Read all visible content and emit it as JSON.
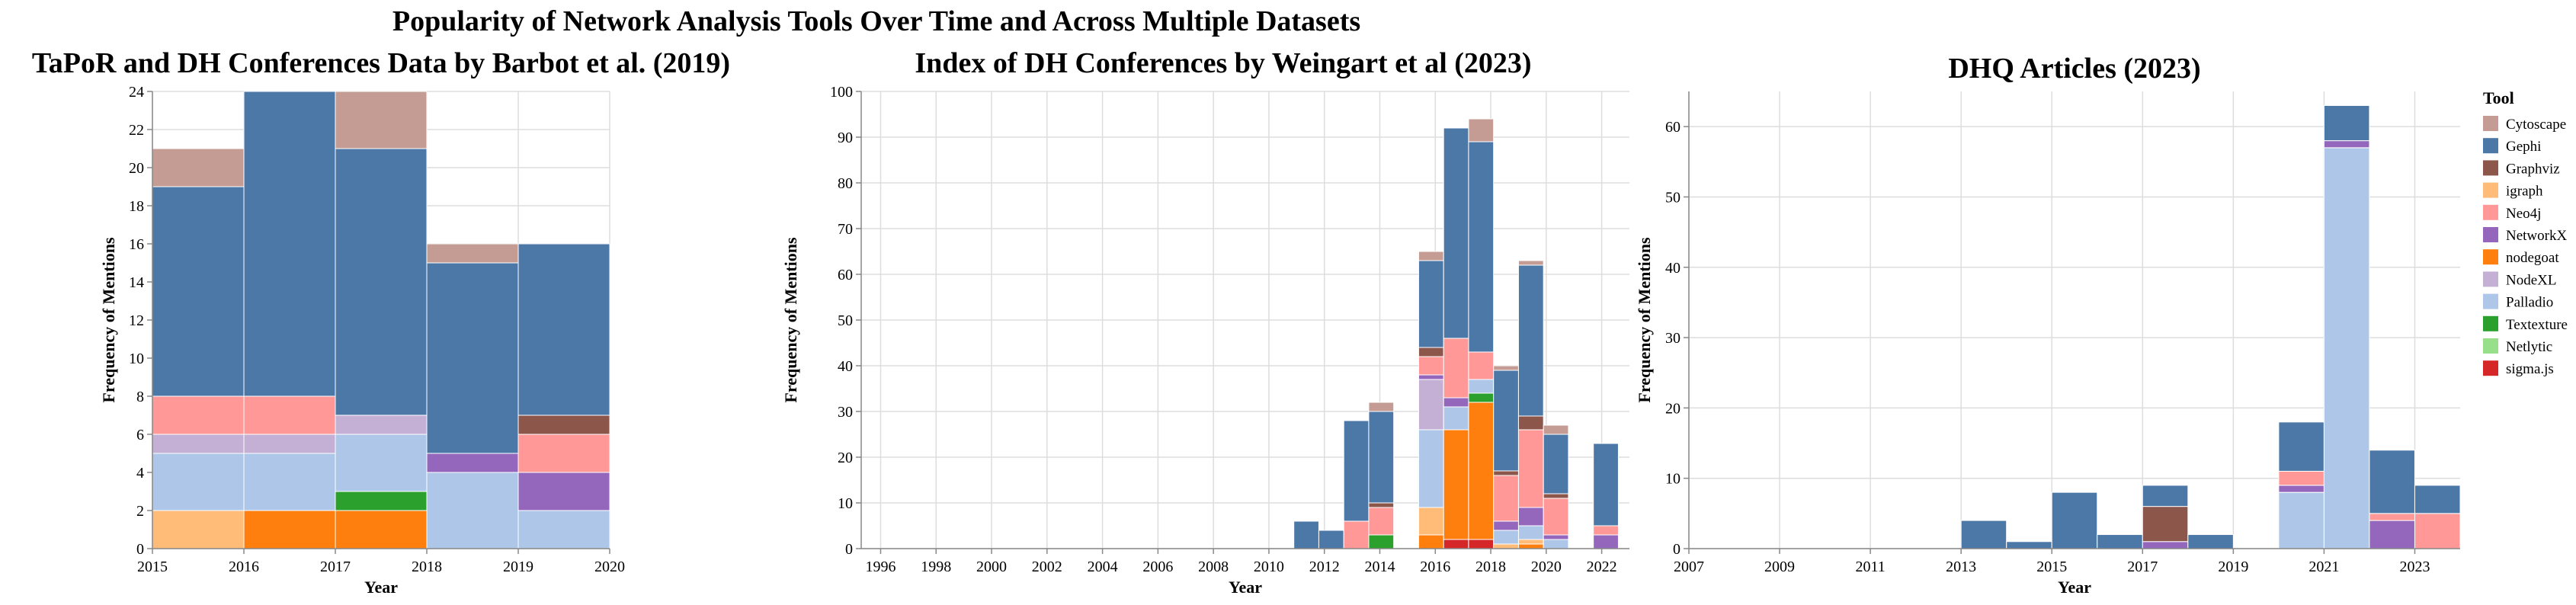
{
  "title": "Popularity of Network Analysis Tools Over Time and Across Multiple Datasets",
  "legend": {
    "title": "Tool",
    "items": [
      {
        "name": "Cytoscape",
        "color": "#c49c94"
      },
      {
        "name": "Gephi",
        "color": "#4c78a8"
      },
      {
        "name": "Graphviz",
        "color": "#8c564b"
      },
      {
        "name": "igraph",
        "color": "#ffbb78"
      },
      {
        "name": "Neo4j",
        "color": "#ff9896"
      },
      {
        "name": "NetworkX",
        "color": "#9467bd"
      },
      {
        "name": "nodegoat",
        "color": "#ff7f0e"
      },
      {
        "name": "NodeXL",
        "color": "#c5b0d5"
      },
      {
        "name": "Palladio",
        "color": "#aec7e8"
      },
      {
        "name": "Textexture",
        "color": "#2ca02c"
      },
      {
        "name": "Netlytic",
        "color": "#98df8a"
      },
      {
        "name": "sigma.js",
        "color": "#d62728"
      }
    ]
  },
  "chart_data": [
    {
      "type": "bar",
      "stacked": true,
      "title": "TaPoR and DH Conferences Data by Barbot et al. (2019)",
      "xlabel": "Year",
      "ylabel": "Frequency of Mentions",
      "xlim": [
        2015,
        2020
      ],
      "ylim": [
        0,
        24
      ],
      "xticks": [
        2015,
        2016,
        2017,
        2018,
        2019,
        2020
      ],
      "yticks": [
        0,
        2,
        4,
        6,
        8,
        10,
        12,
        14,
        16,
        18,
        20,
        22,
        24
      ],
      "grid": true,
      "bins": [
        {
          "x0": 2015,
          "x1": 2016,
          "stack": [
            [
              "igraph",
              2
            ],
            [
              "Palladio",
              3
            ],
            [
              "NodeXL",
              1
            ],
            [
              "Neo4j",
              2
            ],
            [
              "Gephi",
              11
            ],
            [
              "Cytoscape",
              2
            ]
          ]
        },
        {
          "x0": 2016,
          "x1": 2017,
          "stack": [
            [
              "nodegoat",
              2
            ],
            [
              "Palladio",
              3
            ],
            [
              "NodeXL",
              1
            ],
            [
              "Neo4j",
              2
            ],
            [
              "Gephi",
              16
            ]
          ]
        },
        {
          "x0": 2017,
          "x1": 2018,
          "stack": [
            [
              "nodegoat",
              2
            ],
            [
              "Textexture",
              1
            ],
            [
              "Palladio",
              3
            ],
            [
              "NodeXL",
              1
            ],
            [
              "Gephi",
              14
            ],
            [
              "Cytoscape",
              3
            ]
          ]
        },
        {
          "x0": 2018,
          "x1": 2019,
          "stack": [
            [
              "Palladio",
              4
            ],
            [
              "NetworkX",
              1
            ],
            [
              "Gephi",
              10
            ],
            [
              "Cytoscape",
              1
            ]
          ]
        },
        {
          "x0": 2019,
          "x1": 2020,
          "stack": [
            [
              "Palladio",
              2
            ],
            [
              "NetworkX",
              2
            ],
            [
              "Neo4j",
              2
            ],
            [
              "Graphviz",
              1
            ],
            [
              "Gephi",
              9
            ]
          ]
        }
      ]
    },
    {
      "type": "bar",
      "stacked": true,
      "title": "Index of DH Conferences by Weingart et al (2023)",
      "xlabel": "Year",
      "ylabel": "Frequency of Mentions",
      "xlim": [
        1995.3,
        2023
      ],
      "ylim": [
        0,
        100
      ],
      "xticks": [
        1996,
        1998,
        2000,
        2002,
        2004,
        2006,
        2008,
        2010,
        2012,
        2014,
        2016,
        2018,
        2020,
        2022
      ],
      "yticks": [
        0,
        10,
        20,
        30,
        40,
        50,
        60,
        70,
        80,
        90,
        100
      ],
      "grid": true,
      "bins": [
        {
          "x0": 2010.9,
          "x1": 2011.8,
          "stack": [
            [
              "Gephi",
              6
            ]
          ]
        },
        {
          "x0": 2011.8,
          "x1": 2012.7,
          "stack": [
            [
              "Gephi",
              4
            ]
          ]
        },
        {
          "x0": 2012.7,
          "x1": 2013.6,
          "stack": [
            [
              "Neo4j",
              6
            ],
            [
              "Gephi",
              22
            ]
          ]
        },
        {
          "x0": 2013.6,
          "x1": 2014.5,
          "stack": [
            [
              "Textexture",
              3
            ],
            [
              "Neo4j",
              6
            ],
            [
              "Graphviz",
              1
            ],
            [
              "Gephi",
              20
            ],
            [
              "Cytoscape",
              2
            ]
          ]
        },
        {
          "x0": 2015.4,
          "x1": 2016.3,
          "stack": [
            [
              "nodegoat",
              3
            ],
            [
              "igraph",
              6
            ],
            [
              "Palladio",
              17
            ],
            [
              "NodeXL",
              11
            ],
            [
              "NetworkX",
              1
            ],
            [
              "Neo4j",
              4
            ],
            [
              "Graphviz",
              2
            ],
            [
              "Gephi",
              19
            ],
            [
              "Cytoscape",
              2
            ]
          ]
        },
        {
          "x0": 2016.3,
          "x1": 2017.2,
          "stack": [
            [
              "sigma.js",
              2
            ],
            [
              "nodegoat",
              24
            ],
            [
              "Palladio",
              5
            ],
            [
              "NetworkX",
              2
            ],
            [
              "Neo4j",
              13
            ],
            [
              "Gephi",
              46
            ]
          ]
        },
        {
          "x0": 2017.2,
          "x1": 2018.1,
          "stack": [
            [
              "sigma.js",
              2
            ],
            [
              "nodegoat",
              30
            ],
            [
              "Textexture",
              2
            ],
            [
              "Palladio",
              3
            ],
            [
              "Neo4j",
              6
            ],
            [
              "Gephi",
              46
            ],
            [
              "Cytoscape",
              5
            ]
          ]
        },
        {
          "x0": 2018.1,
          "x1": 2019.0,
          "stack": [
            [
              "igraph",
              1
            ],
            [
              "Palladio",
              3
            ],
            [
              "NetworkX",
              2
            ],
            [
              "Neo4j",
              10
            ],
            [
              "Graphviz",
              1
            ],
            [
              "Gephi",
              22
            ],
            [
              "Cytoscape",
              1
            ]
          ]
        },
        {
          "x0": 2019.0,
          "x1": 2019.9,
          "stack": [
            [
              "nodegoat",
              1
            ],
            [
              "igraph",
              1
            ],
            [
              "Palladio",
              3
            ],
            [
              "NetworkX",
              4
            ],
            [
              "Neo4j",
              17
            ],
            [
              "Graphviz",
              3
            ],
            [
              "Gephi",
              33
            ],
            [
              "Cytoscape",
              1
            ]
          ]
        },
        {
          "x0": 2019.9,
          "x1": 2020.8,
          "stack": [
            [
              "Palladio",
              2
            ],
            [
              "NetworkX",
              1
            ],
            [
              "Neo4j",
              8
            ],
            [
              "Graphviz",
              1
            ],
            [
              "Gephi",
              13
            ],
            [
              "Cytoscape",
              2
            ]
          ]
        },
        {
          "x0": 2021.7,
          "x1": 2022.6,
          "stack": [
            [
              "NetworkX",
              3
            ],
            [
              "Neo4j",
              2
            ],
            [
              "Gephi",
              18
            ]
          ]
        }
      ]
    },
    {
      "type": "bar",
      "stacked": true,
      "title": "DHQ Articles (2023)",
      "xlabel": "Year",
      "ylabel": "Frequency of Mentions",
      "xlim": [
        2007,
        2024
      ],
      "ylim": [
        0,
        65
      ],
      "xticks": [
        2007,
        2009,
        2011,
        2013,
        2015,
        2017,
        2019,
        2021,
        2023
      ],
      "yticks": [
        0,
        10,
        20,
        30,
        40,
        50,
        60
      ],
      "grid": true,
      "bins": [
        {
          "x0": 2013,
          "x1": 2014,
          "stack": [
            [
              "Gephi",
              4
            ]
          ]
        },
        {
          "x0": 2014,
          "x1": 2015,
          "stack": [
            [
              "Gephi",
              1
            ]
          ]
        },
        {
          "x0": 2015,
          "x1": 2016,
          "stack": [
            [
              "Gephi",
              8
            ]
          ]
        },
        {
          "x0": 2016,
          "x1": 2017,
          "stack": [
            [
              "Gephi",
              2
            ]
          ]
        },
        {
          "x0": 2017,
          "x1": 2018,
          "stack": [
            [
              "NetworkX",
              1
            ],
            [
              "Graphviz",
              5
            ],
            [
              "Gephi",
              3
            ]
          ]
        },
        {
          "x0": 2018,
          "x1": 2019,
          "stack": [
            [
              "Gephi",
              2
            ]
          ]
        },
        {
          "x0": 2020,
          "x1": 2021,
          "stack": [
            [
              "Palladio",
              8
            ],
            [
              "NetworkX",
              1
            ],
            [
              "Neo4j",
              2
            ],
            [
              "Gephi",
              7
            ]
          ]
        },
        {
          "x0": 2021,
          "x1": 2022,
          "stack": [
            [
              "Palladio",
              57
            ],
            [
              "NetworkX",
              1
            ],
            [
              "Gephi",
              5
            ]
          ]
        },
        {
          "x0": 2022,
          "x1": 2023,
          "stack": [
            [
              "NetworkX",
              4
            ],
            [
              "Neo4j",
              1
            ],
            [
              "Gephi",
              9
            ]
          ]
        },
        {
          "x0": 2023,
          "x1": 2024,
          "stack": [
            [
              "Neo4j",
              5
            ],
            [
              "Gephi",
              4
            ]
          ]
        }
      ]
    }
  ]
}
